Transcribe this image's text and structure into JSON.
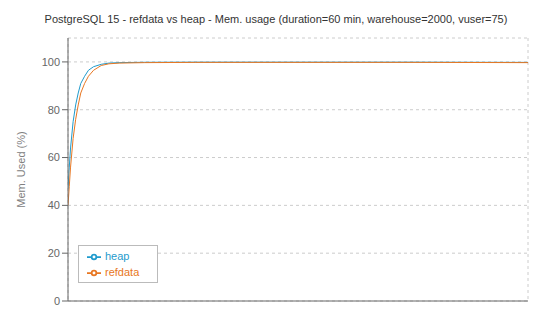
{
  "chart_data": {
    "type": "line",
    "title": "PostgreSQL 15 - refdata vs heap - Mem. usage (duration=60 min, warehouse=2000, vuser=75)",
    "ylabel": "Mem. Used (%)",
    "x": [
      0,
      10,
      20,
      40,
      60,
      80,
      100,
      130,
      160,
      200,
      260,
      320,
      400,
      600,
      1000,
      1800,
      2700,
      3600
    ],
    "series": [
      {
        "name": "heap",
        "color": "#1f9bcd",
        "values": [
          47,
          56,
          64,
          75,
          82,
          87,
          91,
          94,
          96.5,
          98,
          99,
          99.5,
          99.7,
          99.85,
          99.9,
          99.9,
          99.9,
          99.8
        ]
      },
      {
        "name": "refdata",
        "color": "#e87722",
        "values": [
          40,
          48,
          56,
          68,
          76,
          82,
          87,
          91,
          94,
          96.5,
          98.5,
          99.2,
          99.5,
          99.7,
          99.8,
          99.8,
          99.8,
          99.7
        ]
      }
    ],
    "xlim": [
      0,
      3600
    ],
    "xticks": [
      0,
      600,
      1200,
      1800,
      2400,
      3000,
      3600
    ],
    "ylim": [
      0,
      110
    ],
    "yticks": [
      0,
      20,
      40,
      60,
      80,
      100
    ],
    "grid": true,
    "legend": "lower left",
    "tick_labels": "y"
  }
}
